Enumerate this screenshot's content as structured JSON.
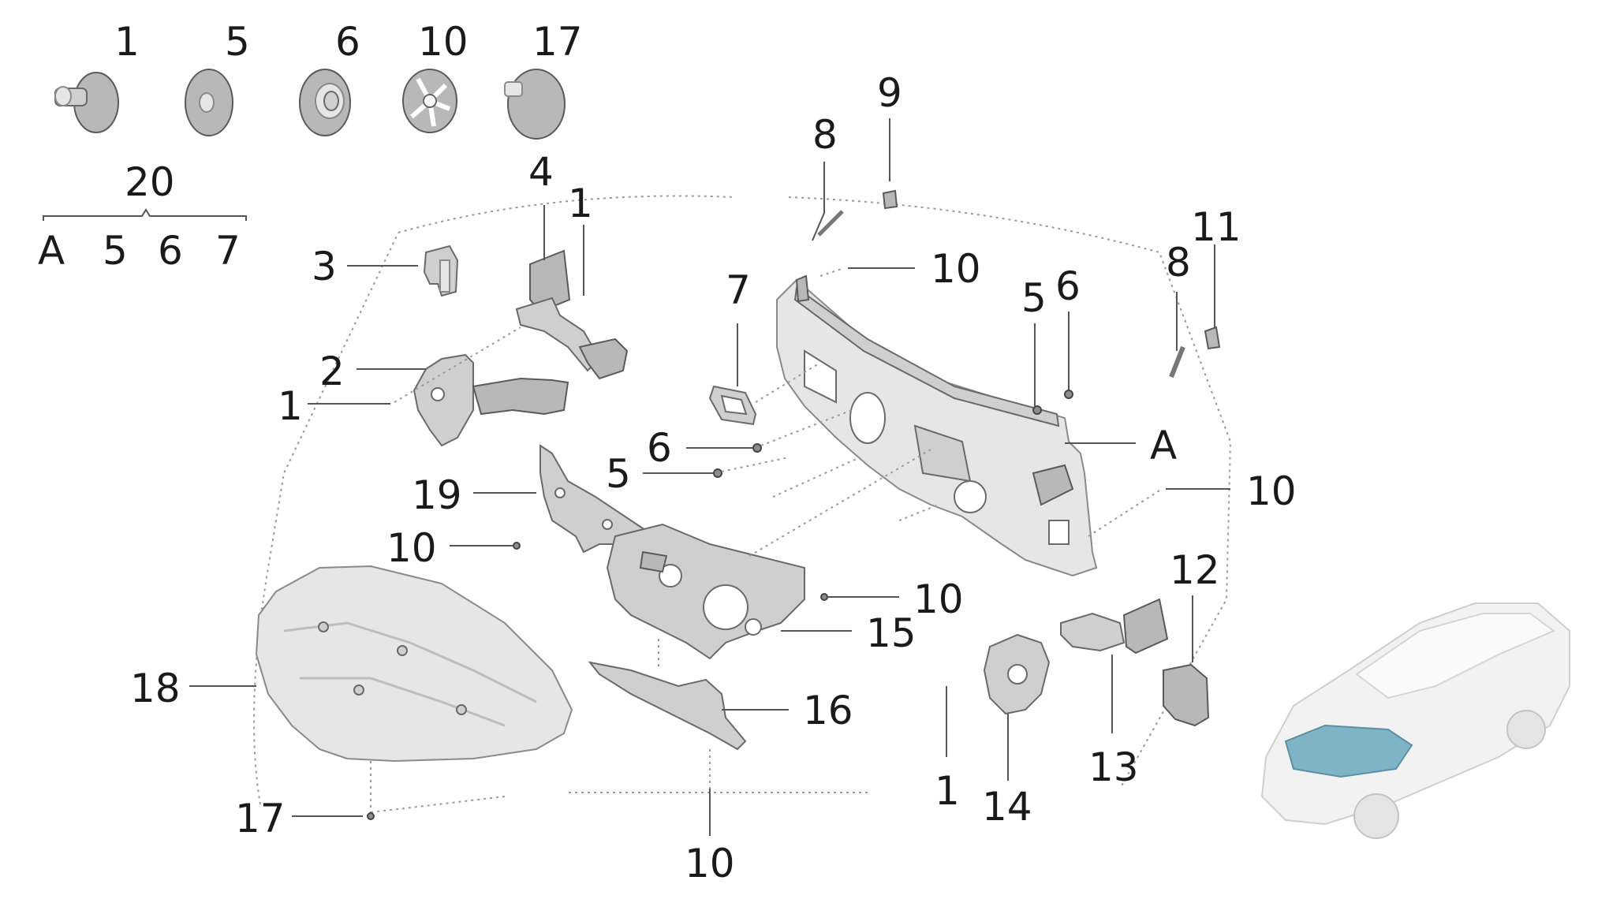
{
  "diagram": {
    "labels": {
      "l1_top": "1",
      "l5_top": "5",
      "l6_top": "6",
      "l10_top": "10",
      "l17_top": "17",
      "l20": "20",
      "lA_kit": "A",
      "l5_kit": "5",
      "l6_kit": "6",
      "l7_kit": "7",
      "l3": "3",
      "l4": "4",
      "l1_a": "1",
      "l2": "2",
      "l1_b": "1",
      "l8_a": "8",
      "l9": "9",
      "l10_a": "10",
      "l7": "7",
      "l5_a": "5",
      "l6_a": "6",
      "l8_b": "8",
      "l11": "11",
      "l6_b": "6",
      "l5_b": "5",
      "lA": "A",
      "l10_b": "10",
      "l19": "19",
      "l10_c": "10",
      "l10_d": "10",
      "l15": "15",
      "l18": "18",
      "l16": "16",
      "l17": "17",
      "l10_e": "10",
      "l12": "12",
      "l13": "13",
      "l1_c": "1",
      "l14": "14"
    },
    "colors": {
      "highlight": "#7fb3c6",
      "vehicle": "#ececec",
      "line": "#555555"
    }
  }
}
